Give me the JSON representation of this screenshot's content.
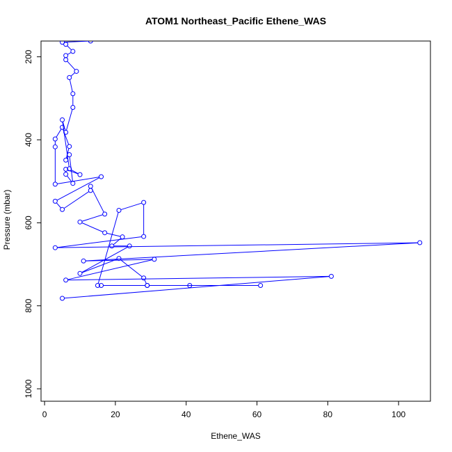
{
  "chart_data": {
    "type": "line",
    "title": "ATOM1 Northeast_Pacific Ethene_WAS",
    "xlabel": "Ethene_WAS",
    "ylabel": "Pressure (mbar)",
    "xlim": [
      -1,
      109
    ],
    "ylim": [
      1030,
      162
    ],
    "y_reversed": true,
    "x_ticks": [
      0,
      20,
      40,
      60,
      80,
      100
    ],
    "y_ticks": [
      200,
      400,
      600,
      800,
      1000
    ],
    "grid": false,
    "legend": "none",
    "colors": {
      "series": "#0000ff",
      "axis": "#000000",
      "background": "#ffffff"
    },
    "series": [
      {
        "marker": "open-circle",
        "points": [
          [
            5,
            782
          ],
          [
            81,
            729
          ],
          [
            6,
            738
          ],
          [
            31,
            688
          ],
          [
            11,
            692
          ],
          [
            106,
            648
          ],
          [
            3,
            660
          ],
          [
            28,
            633
          ],
          [
            28,
            551
          ],
          [
            21,
            570
          ],
          [
            15,
            751
          ],
          [
            16,
            751
          ],
          [
            29,
            751
          ],
          [
            41,
            751
          ],
          [
            61,
            751
          ],
          [
            29,
            751
          ],
          [
            28,
            733
          ],
          [
            21,
            686
          ],
          [
            10,
            722
          ],
          [
            24,
            656
          ],
          [
            19,
            656
          ],
          [
            22,
            634
          ],
          [
            17,
            624
          ],
          [
            10,
            598
          ],
          [
            17,
            579
          ],
          [
            13,
            512
          ],
          [
            13,
            522
          ],
          [
            5,
            568
          ],
          [
            3,
            548
          ],
          [
            16,
            489
          ],
          [
            3,
            507
          ],
          [
            3,
            417
          ],
          [
            3,
            398
          ],
          [
            5,
            370
          ],
          [
            7,
            416
          ],
          [
            6,
            449
          ],
          [
            7,
            436
          ],
          [
            8,
            505
          ],
          [
            6,
            483
          ],
          [
            6,
            471
          ],
          [
            10,
            484
          ],
          [
            7,
            470
          ],
          [
            5,
            352
          ],
          [
            6,
            382
          ],
          [
            8,
            322
          ],
          [
            8,
            289
          ],
          [
            7,
            250
          ],
          [
            9,
            235
          ],
          [
            6,
            207
          ],
          [
            6,
            197
          ],
          [
            8,
            187
          ],
          [
            6,
            170
          ],
          [
            5,
            165
          ],
          [
            13,
            162
          ]
        ]
      }
    ]
  }
}
